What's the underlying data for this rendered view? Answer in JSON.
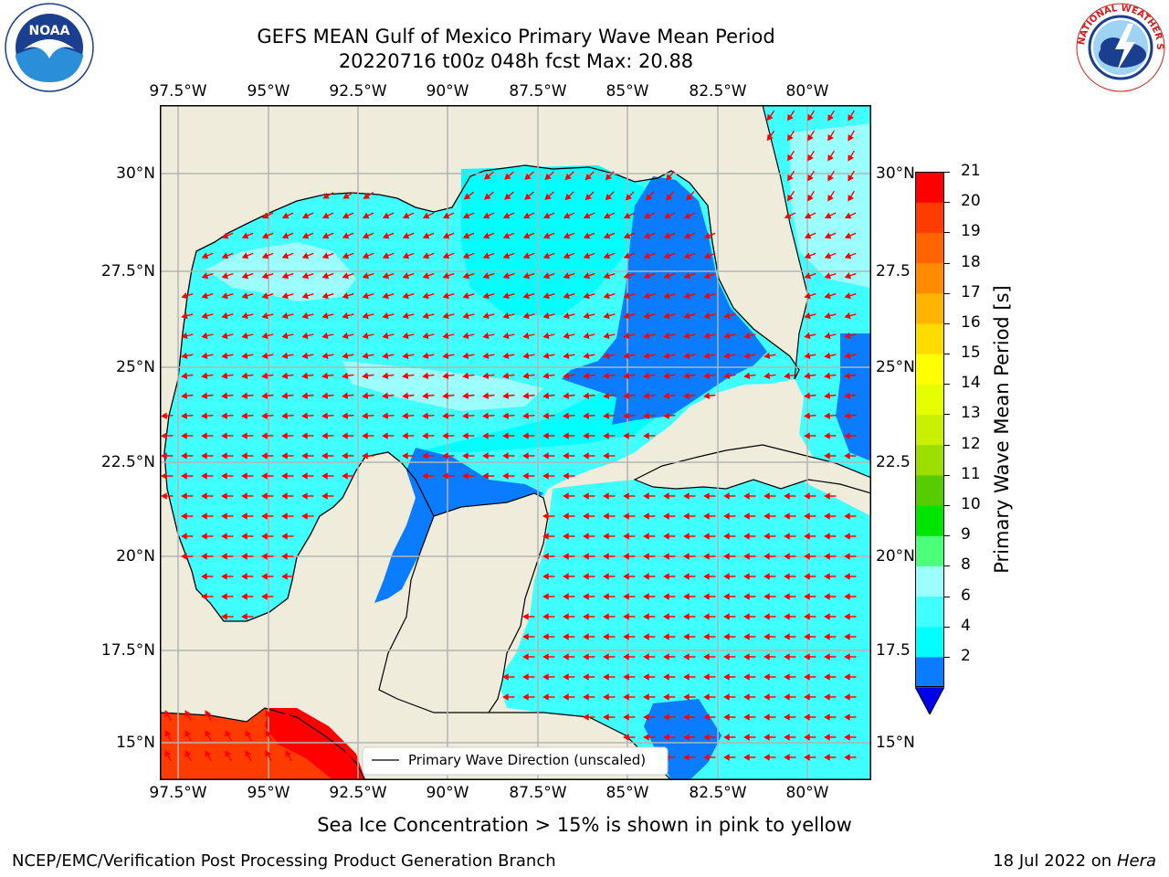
{
  "title": {
    "line1": "GEFS MEAN Gulf of Mexico Primary Wave Mean Period",
    "line2": "20220716 t00z 048h fcst   Max: 20.88"
  },
  "logos": {
    "left": {
      "name": "NOAA",
      "ring_text": "NATIONAL OCEANIC AND ATMOSPHERIC ADMINISTRATION · U.S. DEPARTMENT OF COMMERCE"
    },
    "right": {
      "name": "NATIONAL WEATHER SERVICE"
    }
  },
  "map": {
    "lon_ticks": [
      "97.5°W",
      "95°W",
      "92.5°W",
      "90°W",
      "87.5°W",
      "85°W",
      "82.5°W",
      "80°W"
    ],
    "lat_ticks_left": [
      "30°N",
      "27.5°N",
      "25°N",
      "22.5°N",
      "20°N",
      "17.5°N",
      "15°N"
    ],
    "lat_ticks_right": [
      "30°N",
      "27.5",
      "25°N",
      "22.5",
      "20°N",
      "17.5",
      "15°N"
    ],
    "legend_label": "Primary Wave Direction (unscaled)",
    "colors": {
      "land": "#efecdc",
      "coast": "#000000",
      "grid": "#b4b4b4",
      "arrow": "#ff0000"
    }
  },
  "colorbar": {
    "label": "Primary Wave Mean Period [s]",
    "ticks": [
      "21",
      "20",
      "19",
      "18",
      "17",
      "16",
      "15",
      "14",
      "13",
      "12",
      "11",
      "10",
      "9",
      "8",
      "6",
      "4",
      "2"
    ],
    "colors": [
      "#0000e8",
      "#0a7cff",
      "#00ffff",
      "#40ffff",
      "#9bffff",
      "#4cff7a",
      "#00e400",
      "#56cd00",
      "#9bde00",
      "#c8f000",
      "#e6ff00",
      "#ffff00",
      "#ffdc00",
      "#ffb400",
      "#ff8c00",
      "#ff6400",
      "#ff3c00",
      "#ff0000"
    ]
  },
  "subnote": "Sea Ice Concentration > 15% is shown in pink to yellow",
  "footer": {
    "left": "NCEP/EMC/Verification Post Processing Product Generation Branch",
    "right_date": "18 Jul 2022 on ",
    "right_machine": "Hera"
  }
}
